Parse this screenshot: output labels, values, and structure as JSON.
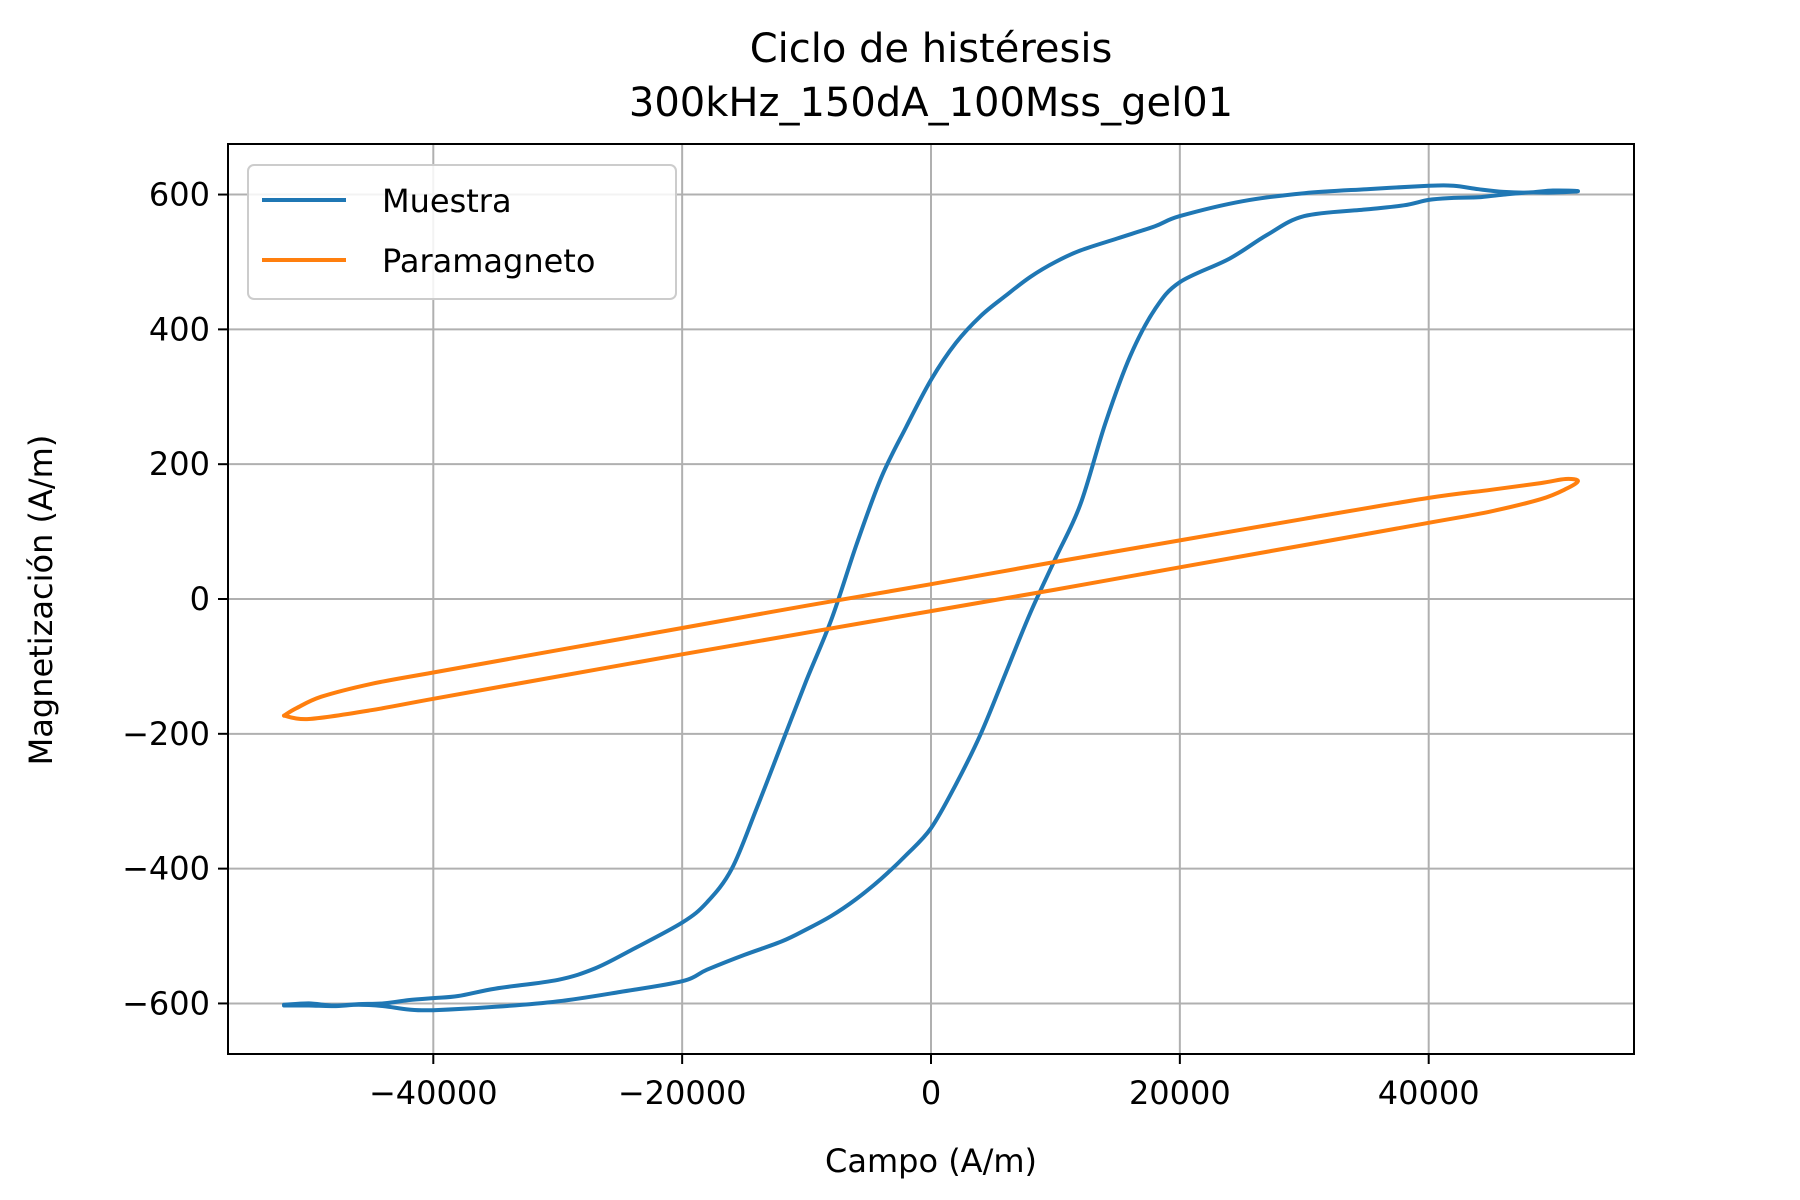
{
  "chart_data": {
    "type": "line",
    "title": "Ciclo de histéresis",
    "subtitle": "300kHz_150dA_100Mss_gel01",
    "xlabel": "Campo (A/m)",
    "ylabel": "Magnetización (A/m)",
    "xlim": [
      -56500,
      56500
    ],
    "ylim": [
      -675,
      675
    ],
    "xticks": [
      -40000,
      -20000,
      0,
      20000,
      40000
    ],
    "xtick_labels": [
      "−40000",
      "−20000",
      "0",
      "20000",
      "40000"
    ],
    "yticks": [
      -600,
      -400,
      -200,
      0,
      200,
      400,
      600
    ],
    "ytick_labels": [
      "−600",
      "−400",
      "−200",
      "0",
      "200",
      "400",
      "600"
    ],
    "grid": true,
    "legend": "upper-left",
    "series": [
      {
        "name": "Muestra",
        "color": "#1f77b4",
        "x": [
          -52000,
          -50000,
          -48000,
          -46000,
          -44000,
          -42000,
          -40000,
          -38000,
          -35000,
          -30000,
          -27000,
          -24000,
          -20000,
          -18000,
          -16000,
          -14000,
          -12000,
          -10000,
          -8000,
          -6000,
          -4000,
          -2000,
          0,
          2000,
          4000,
          6000,
          8000,
          10000,
          12000,
          15000,
          18000,
          20000,
          25000,
          30000,
          35000,
          40000,
          42000,
          44000,
          46000,
          48000,
          50000,
          52000,
          50000,
          48000,
          46000,
          44000,
          42000,
          40000,
          38000,
          35000,
          30000,
          27000,
          24000,
          20000,
          18000,
          16000,
          14000,
          12000,
          10000,
          8000,
          6000,
          4000,
          2000,
          0,
          -2000,
          -4000,
          -6000,
          -8000,
          -10000,
          -12000,
          -15000,
          -18000,
          -20000,
          -25000,
          -30000,
          -35000,
          -40000,
          -42000,
          -44000,
          -46000,
          -48000,
          -50000,
          -52000
        ],
        "y": [
          -602,
          -600,
          -603,
          -601,
          -600,
          -595,
          -592,
          -589,
          -578,
          -565,
          -548,
          -520,
          -480,
          -450,
          -400,
          -310,
          -215,
          -120,
          -30,
          80,
          180,
          255,
          325,
          380,
          420,
          450,
          478,
          500,
          517,
          535,
          553,
          568,
          590,
          602,
          608,
          613,
          613,
          608,
          604,
          603,
          606,
          605,
          603,
          603,
          600,
          596,
          595,
          592,
          584,
          578,
          568,
          540,
          505,
          470,
          430,
          360,
          260,
          140,
          60,
          -20,
          -110,
          -200,
          -275,
          -340,
          -380,
          -415,
          -445,
          -470,
          -490,
          -508,
          -528,
          -550,
          -567,
          -583,
          -597,
          -605,
          -610,
          -609,
          -604,
          -602,
          -604,
          -603,
          -603
        ]
      },
      {
        "name": "Paramagneto",
        "color": "#ff7f0e",
        "x": [
          -52000,
          -50000,
          -45000,
          -40000,
          -30000,
          -20000,
          -10000,
          0,
          10000,
          20000,
          30000,
          40000,
          45000,
          49000,
          51000,
          52000,
          51000,
          49000,
          45000,
          40000,
          30000,
          20000,
          10000,
          0,
          -10000,
          -20000,
          -30000,
          -40000,
          -45000,
          -49000,
          -51000,
          -52000
        ],
        "y": [
          -173,
          -178,
          -165,
          -148,
          -115,
          -82,
          -50,
          -18,
          14,
          47,
          80,
          113,
          130,
          148,
          163,
          175,
          178,
          172,
          162,
          150,
          119,
          87,
          55,
          22,
          -10,
          -43,
          -76,
          -109,
          -126,
          -145,
          -162,
          -173
        ]
      }
    ]
  }
}
